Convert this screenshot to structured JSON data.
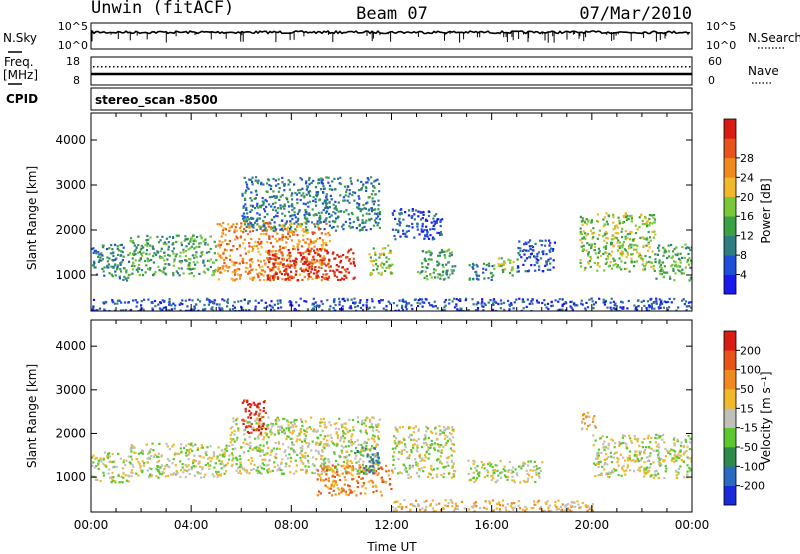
{
  "header": {
    "station": "Unwin (fitACF)",
    "beam": "Beam 07",
    "date": "07/Mar/2010"
  },
  "strips": {
    "nsky_label": "N.Sky",
    "nsky_ticks": [
      "10^5",
      "10^0"
    ],
    "nsearch_label": "N.Search",
    "nsearch_ticks": [
      "10^5",
      "10^0"
    ],
    "freq_label": "Freq.",
    "freq_unit": "[MHz]",
    "freq_ticks": [
      "18",
      "8"
    ],
    "nave_label": "Nave",
    "nave_ticks": [
      "60",
      "0"
    ],
    "cpid_label": "CPID",
    "cpid_value": "stereo_scan -8500"
  },
  "chart_data": [
    {
      "type": "heatmap",
      "name": "power",
      "ylabel": "Slant Range [km]",
      "yticks": [
        1000,
        2000,
        3000,
        4000
      ],
      "ylim": [
        200,
        4600
      ],
      "xlim": [
        0,
        24
      ],
      "xunit": "hours UT",
      "colorbar": {
        "label": "Power [dB]",
        "ticks": [
          "4",
          "8",
          "12",
          "16",
          "20",
          "24",
          "28"
        ],
        "colors": [
          "#1a1aee",
          "#1f4fd8",
          "#2e7d82",
          "#3aa041",
          "#78c83a",
          "#f0b82a",
          "#f08a1e",
          "#e8531a",
          "#d81c14"
        ]
      },
      "echo_regions": [
        {
          "t0": 0.0,
          "t1": 1.5,
          "r0": 900,
          "r1": 1700,
          "level": 2
        },
        {
          "t0": 1.5,
          "t1": 5.0,
          "r0": 1000,
          "r1": 1900,
          "level": 3
        },
        {
          "t0": 5.0,
          "t1": 9.5,
          "r0": 900,
          "r1": 2200,
          "level": 6
        },
        {
          "t0": 7.0,
          "t1": 10.5,
          "r0": 900,
          "r1": 1600,
          "level": 8
        },
        {
          "t0": 6.0,
          "t1": 11.5,
          "r0": 2000,
          "r1": 3200,
          "level": 2
        },
        {
          "t0": 11.0,
          "t1": 12.0,
          "r0": 1000,
          "r1": 1700,
          "level": 4
        },
        {
          "t0": 12.0,
          "t1": 14.0,
          "r0": 1800,
          "r1": 2500,
          "level": 1
        },
        {
          "t0": 13.0,
          "t1": 14.5,
          "r0": 900,
          "r1": 1600,
          "level": 3
        },
        {
          "t0": 15.0,
          "t1": 16.0,
          "r0": 900,
          "r1": 1300,
          "level": 2
        },
        {
          "t0": 16.0,
          "t1": 17.0,
          "r0": 1000,
          "r1": 1400,
          "level": 4
        },
        {
          "t0": 17.0,
          "t1": 18.5,
          "r0": 1100,
          "r1": 1800,
          "level": 1
        },
        {
          "t0": 19.5,
          "t1": 22.5,
          "r0": 1100,
          "r1": 2400,
          "level": 4
        },
        {
          "t0": 22.5,
          "t1": 24.0,
          "r0": 900,
          "r1": 1700,
          "level": 3
        },
        {
          "t0": 0.0,
          "t1": 24.0,
          "r0": 220,
          "r1": 500,
          "level": 1
        }
      ]
    },
    {
      "type": "heatmap",
      "name": "velocity",
      "ylabel": "Slant Range [km]",
      "yticks": [
        1000,
        2000,
        3000,
        4000
      ],
      "ylim": [
        200,
        4600
      ],
      "xlim": [
        0,
        24
      ],
      "xticks": [
        "00:00",
        "04:00",
        "08:00",
        "12:00",
        "16:00",
        "20:00",
        "00:00"
      ],
      "xlabel": "Time UT",
      "colorbar": {
        "label": "Velocity [m s⁻¹]",
        "ticks": [
          "200",
          "100",
          "50",
          "15",
          "-15",
          "-50",
          "-100",
          "-200"
        ],
        "colors": [
          "#1a2ad8",
          "#2a6ac0",
          "#2e8a4a",
          "#5cc82e",
          "#c0c0b8",
          "#f0b82a",
          "#f08a1e",
          "#e8531a",
          "#d81c14"
        ]
      },
      "echo_regions": [
        {
          "t0": 0.0,
          "t1": 1.5,
          "r0": 900,
          "r1": 1600,
          "level": 4
        },
        {
          "t0": 1.5,
          "t1": 5.5,
          "r0": 1000,
          "r1": 1800,
          "level": 4
        },
        {
          "t0": 5.5,
          "t1": 11.5,
          "r0": 1100,
          "r1": 2400,
          "level": 4
        },
        {
          "t0": 6.0,
          "t1": 7.0,
          "r0": 2000,
          "r1": 2800,
          "level": 8
        },
        {
          "t0": 9.0,
          "t1": 12.0,
          "r0": 600,
          "r1": 1300,
          "level": 6
        },
        {
          "t0": 10.5,
          "t1": 11.5,
          "r0": 1100,
          "r1": 1700,
          "level": 2
        },
        {
          "t0": 12.0,
          "t1": 14.5,
          "r0": 1000,
          "r1": 2200,
          "level": 4
        },
        {
          "t0": 15.0,
          "t1": 18.0,
          "r0": 900,
          "r1": 1400,
          "level": 4
        },
        {
          "t0": 19.5,
          "t1": 20.2,
          "r0": 2100,
          "r1": 2500,
          "level": 5
        },
        {
          "t0": 20.0,
          "t1": 24.0,
          "r0": 1000,
          "r1": 2000,
          "level": 4
        },
        {
          "t0": 12.0,
          "t1": 20.0,
          "r0": 220,
          "r1": 500,
          "level": 5
        }
      ]
    }
  ]
}
